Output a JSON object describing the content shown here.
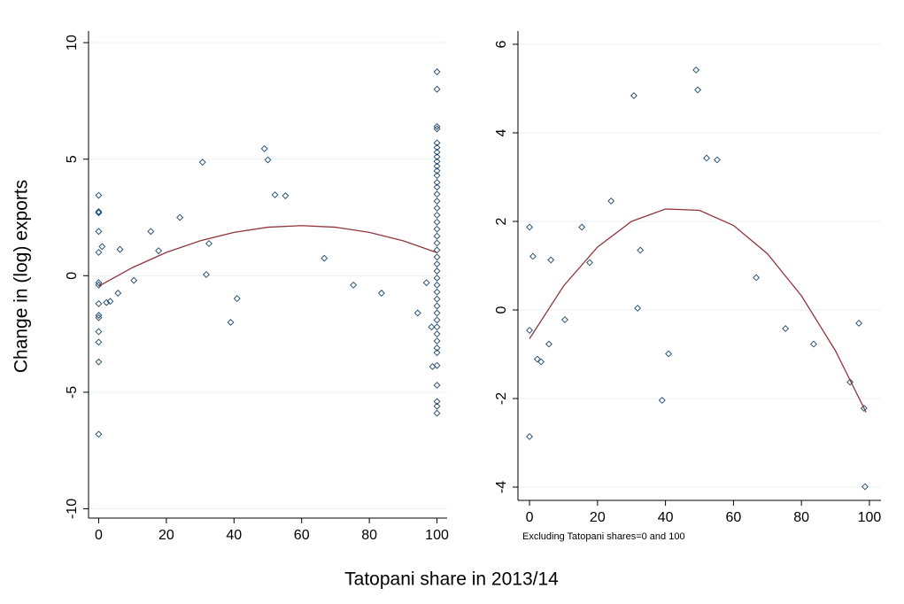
{
  "y_label": "Change in (log) exports",
  "x_label": "Tatopani share in 2013/14",
  "chart_data": [
    {
      "type": "scatter",
      "xlim": [
        -3,
        103
      ],
      "ylim": [
        -10.4,
        10.5
      ],
      "xticks": [
        0,
        20,
        40,
        60,
        80,
        100
      ],
      "yticks": [
        -10,
        -5,
        0,
        5,
        10
      ],
      "grid": true,
      "series": [
        {
          "color": "#1a476f",
          "marker": "hollow-diamond",
          "x": [
            0,
            0,
            0,
            0,
            0,
            0,
            0,
            0,
            0,
            0,
            0,
            0,
            0,
            0,
            1,
            2.3,
            3.4,
            5.7,
            6.3,
            10.4,
            15.4,
            17.7,
            24,
            30.7,
            31.8,
            32.6,
            39,
            40.9,
            49,
            50,
            52.1,
            55.2,
            66.7,
            75.3,
            83.6,
            94.3,
            96.9,
            98.4,
            98.7,
            100,
            100,
            100,
            100,
            100,
            100,
            100,
            100,
            100,
            100,
            100,
            100,
            100,
            100,
            100,
            100,
            100,
            100,
            100,
            100,
            100,
            100,
            100,
            100,
            100,
            100,
            100,
            100,
            100,
            100,
            100,
            100,
            100,
            100,
            100,
            100,
            100,
            100,
            100,
            100,
            100,
            100,
            100
          ],
          "values": [
            3.45,
            2.75,
            2.7,
            1.9,
            1.0,
            -0.3,
            -0.4,
            -1.2,
            -1.7,
            -1.8,
            -2.4,
            -2.85,
            -3.7,
            -6.8,
            1.25,
            -1.15,
            -1.1,
            -0.75,
            1.13,
            -0.2,
            1.9,
            1.07,
            2.5,
            4.87,
            0.05,
            1.38,
            -2.0,
            -0.98,
            5.45,
            4.97,
            3.47,
            3.43,
            0.75,
            -0.4,
            -0.75,
            -1.6,
            -0.3,
            -2.2,
            -3.9,
            8.75,
            8.0,
            6.4,
            6.3,
            5.7,
            5.5,
            5.3,
            5.1,
            4.9,
            4.7,
            4.5,
            4.3,
            4.0,
            3.8,
            3.5,
            3.2,
            2.9,
            2.6,
            2.3,
            2.0,
            1.7,
            1.4,
            1.1,
            0.8,
            0.5,
            0.2,
            -0.1,
            -0.4,
            -0.7,
            -1.0,
            -1.3,
            -1.6,
            -1.9,
            -2.2,
            -2.5,
            -2.8,
            -3.1,
            -3.3,
            -3.85,
            -4.7,
            -5.4,
            -5.6,
            -5.9
          ]
        },
        {
          "color": "#90353b",
          "line": true,
          "x": [
            0,
            10,
            20,
            30,
            40,
            50,
            60,
            70,
            80,
            90,
            100
          ],
          "values": [
            -0.45,
            0.35,
            1.0,
            1.5,
            1.86,
            2.08,
            2.15,
            2.08,
            1.86,
            1.5,
            0.99
          ]
        }
      ]
    },
    {
      "type": "scatter",
      "xlim": [
        -3.4,
        103.4
      ],
      "ylim": [
        -4.3,
        6.3
      ],
      "xticks": [
        0,
        20,
        40,
        60,
        80,
        100
      ],
      "yticks": [
        -4,
        -2,
        0,
        2,
        4,
        6
      ],
      "grid": true,
      "note": "Excluding Tatopani shares=0 and 100",
      "series": [
        {
          "color": "#1a476f",
          "marker": "hollow-diamond",
          "x": [
            0,
            0,
            0,
            1,
            2.3,
            3.4,
            5.7,
            6.3,
            10.4,
            15.4,
            17.7,
            24,
            30.7,
            31.8,
            32.6,
            39,
            40.9,
            49,
            49.5,
            52.1,
            55.2,
            66.7,
            75.3,
            83.6,
            94.3,
            96.9,
            98.4,
            98.7
          ],
          "values": [
            1.87,
            -0.46,
            -2.86,
            1.21,
            -1.11,
            -1.17,
            -0.77,
            1.13,
            -0.22,
            1.87,
            1.07,
            2.46,
            4.84,
            0.04,
            1.35,
            -2.04,
            -0.99,
            5.42,
            4.97,
            3.43,
            3.39,
            0.73,
            -0.42,
            -0.77,
            -1.63,
            -0.3,
            -2.22,
            -3.99
          ]
        },
        {
          "color": "#90353b",
          "line": true,
          "x": [
            0,
            10,
            20,
            30,
            40,
            50,
            60,
            70,
            80,
            90,
            99
          ],
          "values": [
            -0.65,
            0.54,
            1.42,
            2.0,
            2.28,
            2.25,
            1.91,
            1.27,
            0.32,
            -0.92,
            -2.31
          ]
        }
      ]
    }
  ]
}
